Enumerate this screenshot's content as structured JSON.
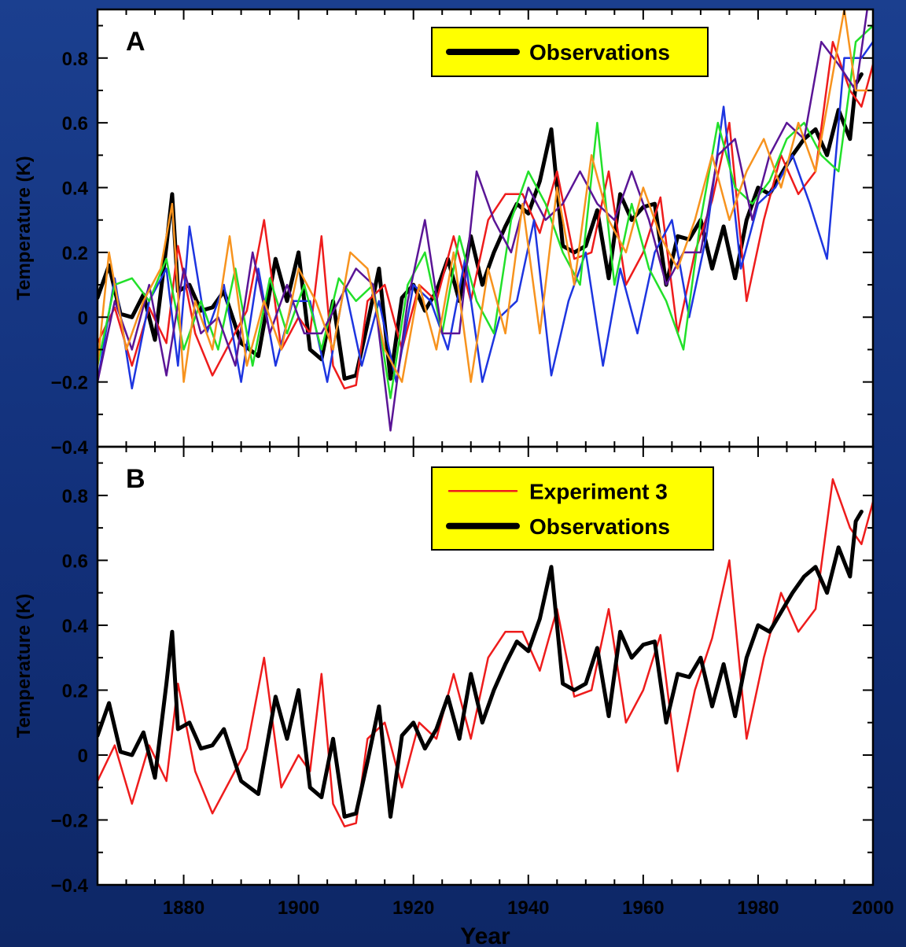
{
  "colors": {
    "background": "#1b3f8f",
    "panel": "#ffffff",
    "legend_box": "#ffff00",
    "observations": "#000000",
    "experiment_3": "#ee1c1c",
    "model_blue": "#1d35e0",
    "model_green": "#22e02a",
    "model_purple": "#5a1596",
    "model_orange": "#f7931e"
  },
  "chart_data": [
    {
      "type": "line",
      "panel_label": "A",
      "xlabel": "",
      "ylabel": "Temperature (K)",
      "xlim": [
        1865,
        2000
      ],
      "ylim": [
        -0.4,
        0.95
      ],
      "x_ticks": [
        1880,
        1900,
        1920,
        1940,
        1960,
        1980,
        2000
      ],
      "y_ticks": [
        -0.4,
        -0.2,
        0,
        0.2,
        0.4,
        0.6,
        0.8
      ],
      "y_tick_labels": [
        "−0.4",
        "−0.2",
        "0",
        "0.2",
        "0.4",
        "0.6",
        "0.8"
      ],
      "grid": false,
      "legend": {
        "placement": "top-right",
        "entries": [
          {
            "label": "Observations",
            "series": "observations"
          }
        ]
      },
      "series": [
        {
          "id": "observations",
          "name": "Observations",
          "color": "#000000",
          "width": 5,
          "x": [
            1865,
            1867,
            1869,
            1871,
            1873,
            1875,
            1877,
            1878,
            1879,
            1881,
            1883,
            1885,
            1887,
            1890,
            1893,
            1896,
            1898,
            1900,
            1902,
            1904,
            1906,
            1908,
            1910,
            1912,
            1914,
            1916,
            1918,
            1920,
            1922,
            1924,
            1926,
            1928,
            1930,
            1932,
            1934,
            1936,
            1938,
            1940,
            1942,
            1944,
            1946,
            1948,
            1950,
            1952,
            1954,
            1956,
            1958,
            1960,
            1962,
            1964,
            1966,
            1968,
            1970,
            1972,
            1974,
            1976,
            1978,
            1980,
            1982,
            1984,
            1986,
            1988,
            1990,
            1992,
            1994,
            1996,
            1997,
            1998
          ],
          "y": [
            0.06,
            0.16,
            0.01,
            0.0,
            0.07,
            -0.07,
            0.22,
            0.38,
            0.08,
            0.1,
            0.02,
            0.03,
            0.08,
            -0.08,
            -0.12,
            0.18,
            0.05,
            0.2,
            -0.1,
            -0.13,
            0.05,
            -0.19,
            -0.18,
            -0.02,
            0.15,
            -0.19,
            0.06,
            0.1,
            0.02,
            0.08,
            0.18,
            0.05,
            0.25,
            0.1,
            0.2,
            0.28,
            0.35,
            0.32,
            0.42,
            0.58,
            0.22,
            0.2,
            0.22,
            0.33,
            0.12,
            0.38,
            0.3,
            0.34,
            0.35,
            0.1,
            0.25,
            0.24,
            0.3,
            0.15,
            0.28,
            0.12,
            0.3,
            0.4,
            0.38,
            0.44,
            0.5,
            0.55,
            0.58,
            0.5,
            0.64,
            0.55,
            0.72,
            0.75
          ]
        },
        {
          "id": "model_red",
          "name": "",
          "color": "#ee1c1c",
          "width": 2.5,
          "x": [
            1865,
            1868,
            1871,
            1874,
            1877,
            1879,
            1882,
            1885,
            1888,
            1891,
            1894,
            1897,
            1900,
            1902,
            1904,
            1906,
            1908,
            1910,
            1912,
            1915,
            1918,
            1921,
            1924,
            1927,
            1930,
            1933,
            1936,
            1939,
            1942,
            1945,
            1948,
            1951,
            1954,
            1957,
            1960,
            1963,
            1966,
            1969,
            1972,
            1975,
            1978,
            1981,
            1984,
            1987,
            1990,
            1993,
            1996,
            1998,
            2000
          ],
          "y": [
            -0.08,
            0.03,
            -0.15,
            0.03,
            -0.08,
            0.22,
            -0.05,
            -0.18,
            -0.08,
            0.02,
            0.3,
            -0.1,
            0.0,
            -0.05,
            0.25,
            -0.15,
            -0.22,
            -0.21,
            0.05,
            0.1,
            -0.1,
            0.1,
            0.05,
            0.25,
            0.05,
            0.3,
            0.38,
            0.38,
            0.26,
            0.45,
            0.18,
            0.2,
            0.45,
            0.1,
            0.2,
            0.37,
            -0.05,
            0.2,
            0.36,
            0.6,
            0.05,
            0.3,
            0.5,
            0.38,
            0.45,
            0.85,
            0.7,
            0.65,
            0.78
          ]
        },
        {
          "id": "model_blue",
          "name": "",
          "color": "#1d35e0",
          "width": 2.5,
          "x": [
            1865,
            1868,
            1871,
            1874,
            1877,
            1879,
            1881,
            1884,
            1887,
            1890,
            1893,
            1896,
            1899,
            1902,
            1905,
            1908,
            1911,
            1914,
            1917,
            1920,
            1923,
            1926,
            1929,
            1932,
            1935,
            1938,
            1941,
            1944,
            1947,
            1950,
            1953,
            1956,
            1959,
            1962,
            1965,
            1968,
            1971,
            1974,
            1977,
            1980,
            1983,
            1986,
            1989,
            1992,
            1995,
            1998,
            2000
          ],
          "y": [
            -0.2,
            0.12,
            -0.22,
            0.05,
            0.15,
            -0.15,
            0.28,
            -0.05,
            0.1,
            -0.2,
            0.15,
            -0.15,
            0.05,
            0.05,
            -0.2,
            0.1,
            -0.15,
            0.05,
            -0.2,
            0.1,
            0.05,
            -0.1,
            0.18,
            -0.2,
            0.0,
            0.05,
            0.3,
            -0.18,
            0.05,
            0.2,
            -0.15,
            0.15,
            -0.05,
            0.2,
            0.3,
            0.0,
            0.25,
            0.65,
            0.15,
            0.35,
            0.4,
            0.5,
            0.35,
            0.18,
            0.8,
            0.8,
            0.85
          ]
        },
        {
          "id": "model_green",
          "name": "",
          "color": "#22e02a",
          "width": 2.5,
          "x": [
            1865,
            1868,
            1871,
            1874,
            1877,
            1880,
            1883,
            1886,
            1889,
            1892,
            1895,
            1898,
            1901,
            1904,
            1907,
            1910,
            1913,
            1916,
            1919,
            1922,
            1925,
            1928,
            1931,
            1934,
            1937,
            1940,
            1943,
            1946,
            1949,
            1952,
            1955,
            1958,
            1961,
            1964,
            1967,
            1970,
            1973,
            1976,
            1979,
            1982,
            1985,
            1988,
            1991,
            1994,
            1997,
            2000
          ],
          "y": [
            -0.15,
            0.1,
            0.12,
            0.05,
            0.18,
            -0.1,
            0.05,
            -0.1,
            0.15,
            -0.15,
            0.12,
            -0.05,
            0.1,
            -0.1,
            0.12,
            0.05,
            0.1,
            -0.25,
            0.1,
            0.2,
            -0.05,
            0.25,
            0.05,
            -0.05,
            0.3,
            0.45,
            0.35,
            0.2,
            0.1,
            0.6,
            0.1,
            0.35,
            0.15,
            0.05,
            -0.1,
            0.3,
            0.6,
            0.4,
            0.35,
            0.42,
            0.55,
            0.6,
            0.5,
            0.45,
            0.85,
            0.9
          ]
        },
        {
          "id": "model_purple",
          "name": "",
          "color": "#5a1596",
          "width": 2.5,
          "x": [
            1865,
            1868,
            1871,
            1874,
            1877,
            1880,
            1883,
            1886,
            1889,
            1892,
            1895,
            1898,
            1901,
            1904,
            1907,
            1910,
            1913,
            1916,
            1919,
            1922,
            1925,
            1928,
            1931,
            1934,
            1937,
            1940,
            1943,
            1946,
            1949,
            1952,
            1955,
            1958,
            1961,
            1964,
            1967,
            1970,
            1973,
            1976,
            1979,
            1982,
            1985,
            1988,
            1991,
            1994,
            1997,
            1999
          ],
          "y": [
            -0.2,
            0.05,
            -0.1,
            0.1,
            -0.18,
            0.15,
            -0.05,
            0.0,
            -0.15,
            0.2,
            -0.05,
            0.1,
            -0.05,
            -0.05,
            0.05,
            0.15,
            0.1,
            -0.35,
            0.05,
            0.3,
            -0.05,
            -0.05,
            0.45,
            0.3,
            0.2,
            0.4,
            0.3,
            0.35,
            0.45,
            0.35,
            0.3,
            0.45,
            0.3,
            0.1,
            0.2,
            0.2,
            0.5,
            0.55,
            0.3,
            0.5,
            0.6,
            0.55,
            0.85,
            0.78,
            0.7,
            0.95
          ]
        },
        {
          "id": "model_orange",
          "name": "",
          "color": "#f7931e",
          "width": 2.5,
          "x": [
            1865,
            1867,
            1870,
            1873,
            1876,
            1878,
            1880,
            1882,
            1885,
            1888,
            1891,
            1894,
            1897,
            1900,
            1903,
            1906,
            1909,
            1912,
            1915,
            1918,
            1921,
            1924,
            1927,
            1930,
            1933,
            1936,
            1939,
            1942,
            1945,
            1948,
            1951,
            1954,
            1957,
            1960,
            1963,
            1966,
            1969,
            1972,
            1975,
            1978,
            1981,
            1984,
            1987,
            1990,
            1993,
            1995,
            1997,
            2000
          ],
          "y": [
            -0.15,
            0.2,
            -0.1,
            0.05,
            0.15,
            0.35,
            -0.2,
            0.05,
            -0.1,
            0.25,
            -0.15,
            0.05,
            -0.1,
            0.15,
            0.05,
            -0.1,
            0.2,
            0.15,
            -0.1,
            -0.2,
            0.1,
            -0.1,
            0.2,
            -0.2,
            0.15,
            -0.05,
            0.35,
            -0.05,
            0.4,
            0.1,
            0.5,
            0.3,
            0.2,
            0.4,
            0.25,
            0.15,
            0.3,
            0.5,
            0.3,
            0.45,
            0.55,
            0.4,
            0.6,
            0.45,
            0.75,
            0.95,
            0.7,
            0.7
          ]
        }
      ]
    },
    {
      "type": "line",
      "panel_label": "B",
      "xlabel": "Year",
      "ylabel": "Temperature (K)",
      "xlim": [
        1865,
        2000
      ],
      "ylim": [
        -0.4,
        0.95
      ],
      "x_ticks": [
        1880,
        1900,
        1920,
        1940,
        1960,
        1980,
        2000
      ],
      "x_tick_labels": [
        "1880",
        "1900",
        "1920",
        "1940",
        "1960",
        "1980",
        "2000"
      ],
      "y_ticks": [
        -0.4,
        -0.2,
        0,
        0.2,
        0.4,
        0.6,
        0.8
      ],
      "y_tick_labels": [
        "−0.4",
        "−0.2",
        "0",
        "0.2",
        "0.4",
        "0.6",
        "0.8"
      ],
      "grid": false,
      "legend": {
        "placement": "top-right",
        "entries": [
          {
            "label": "Experiment 3",
            "series": "experiment_3"
          },
          {
            "label": "Observations",
            "series": "observations"
          }
        ]
      },
      "series": [
        {
          "id": "experiment_3",
          "name": "Experiment 3",
          "color": "#ee1c1c",
          "width": 2.5,
          "x": [
            1865,
            1868,
            1871,
            1874,
            1877,
            1879,
            1882,
            1885,
            1888,
            1891,
            1894,
            1897,
            1900,
            1902,
            1904,
            1906,
            1908,
            1910,
            1912,
            1915,
            1918,
            1921,
            1924,
            1927,
            1930,
            1933,
            1936,
            1939,
            1942,
            1945,
            1948,
            1951,
            1954,
            1957,
            1960,
            1963,
            1966,
            1969,
            1972,
            1975,
            1978,
            1981,
            1984,
            1987,
            1990,
            1993,
            1996,
            1998,
            2000
          ],
          "y": [
            -0.08,
            0.03,
            -0.15,
            0.03,
            -0.08,
            0.22,
            -0.05,
            -0.18,
            -0.08,
            0.02,
            0.3,
            -0.1,
            0.0,
            -0.05,
            0.25,
            -0.15,
            -0.22,
            -0.21,
            0.05,
            0.1,
            -0.1,
            0.1,
            0.05,
            0.25,
            0.05,
            0.3,
            0.38,
            0.38,
            0.26,
            0.45,
            0.18,
            0.2,
            0.45,
            0.1,
            0.2,
            0.37,
            -0.05,
            0.2,
            0.36,
            0.6,
            0.05,
            0.3,
            0.5,
            0.38,
            0.45,
            0.85,
            0.7,
            0.65,
            0.78
          ]
        },
        {
          "id": "observations",
          "name": "Observations",
          "color": "#000000",
          "width": 5,
          "x": [
            1865,
            1867,
            1869,
            1871,
            1873,
            1875,
            1877,
            1878,
            1879,
            1881,
            1883,
            1885,
            1887,
            1890,
            1893,
            1896,
            1898,
            1900,
            1902,
            1904,
            1906,
            1908,
            1910,
            1912,
            1914,
            1916,
            1918,
            1920,
            1922,
            1924,
            1926,
            1928,
            1930,
            1932,
            1934,
            1936,
            1938,
            1940,
            1942,
            1944,
            1946,
            1948,
            1950,
            1952,
            1954,
            1956,
            1958,
            1960,
            1962,
            1964,
            1966,
            1968,
            1970,
            1972,
            1974,
            1976,
            1978,
            1980,
            1982,
            1984,
            1986,
            1988,
            1990,
            1992,
            1994,
            1996,
            1997,
            1998
          ],
          "y": [
            0.06,
            0.16,
            0.01,
            0.0,
            0.07,
            -0.07,
            0.22,
            0.38,
            0.08,
            0.1,
            0.02,
            0.03,
            0.08,
            -0.08,
            -0.12,
            0.18,
            0.05,
            0.2,
            -0.1,
            -0.13,
            0.05,
            -0.19,
            -0.18,
            -0.02,
            0.15,
            -0.19,
            0.06,
            0.1,
            0.02,
            0.08,
            0.18,
            0.05,
            0.25,
            0.1,
            0.2,
            0.28,
            0.35,
            0.32,
            0.42,
            0.58,
            0.22,
            0.2,
            0.22,
            0.33,
            0.12,
            0.38,
            0.3,
            0.34,
            0.35,
            0.1,
            0.25,
            0.24,
            0.3,
            0.15,
            0.28,
            0.12,
            0.3,
            0.4,
            0.38,
            0.44,
            0.5,
            0.55,
            0.58,
            0.5,
            0.64,
            0.55,
            0.72,
            0.75
          ]
        }
      ]
    }
  ]
}
